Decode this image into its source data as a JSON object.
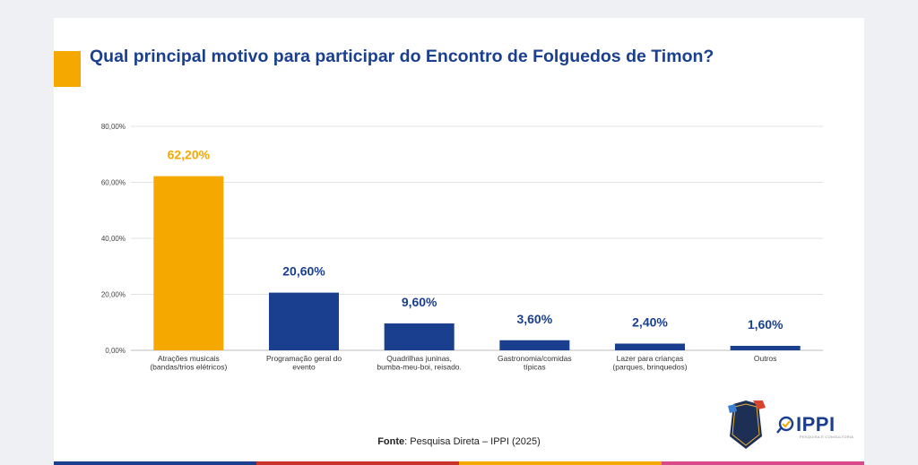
{
  "title": "Qual principal motivo para participar do Encontro de Folguedos de Timon?",
  "source_label": "Fonte",
  "source_text": ": Pesquisa Direta – IPPI (2025)",
  "brand": {
    "ippi_name": "IPPI",
    "ippi_tagline": "PESQUISA E CONSULTORIA",
    "badge_text": [
      "FOL",
      "GUE",
      "DOS"
    ]
  },
  "colors": {
    "highlight": "#f5a800",
    "primary": "#1a3f8f",
    "grid": "#e3e3e3"
  },
  "chart_data": {
    "type": "bar",
    "title": "Qual principal motivo para participar do Encontro de Folguedos de Timon?",
    "categories": [
      [
        "Atrações musicais",
        "(bandas/trios elétricos)"
      ],
      [
        "Programação geral do",
        "evento"
      ],
      [
        "Quadrilhas juninas,",
        "bumba-meu-boi, reisado."
      ],
      [
        "Gastronomia/comidas",
        "típicas"
      ],
      [
        "Lazer para crianças",
        "(parques, brinquedos)"
      ],
      [
        "Outros"
      ]
    ],
    "values": [
      62.2,
      20.6,
      9.6,
      3.6,
      2.4,
      1.6
    ],
    "value_labels": [
      "62,20%",
      "20,60%",
      "9,60%",
      "3,60%",
      "2,40%",
      "1,60%"
    ],
    "highlight_index": 0,
    "ylim": [
      0,
      80
    ],
    "yticks": [
      0,
      20,
      40,
      60,
      80
    ],
    "ytick_labels": [
      "0,00%",
      "20,00%",
      "40,00%",
      "60,00%",
      "80,00%"
    ],
    "grid": true,
    "legend": "none",
    "xlabel": "",
    "ylabel": ""
  }
}
